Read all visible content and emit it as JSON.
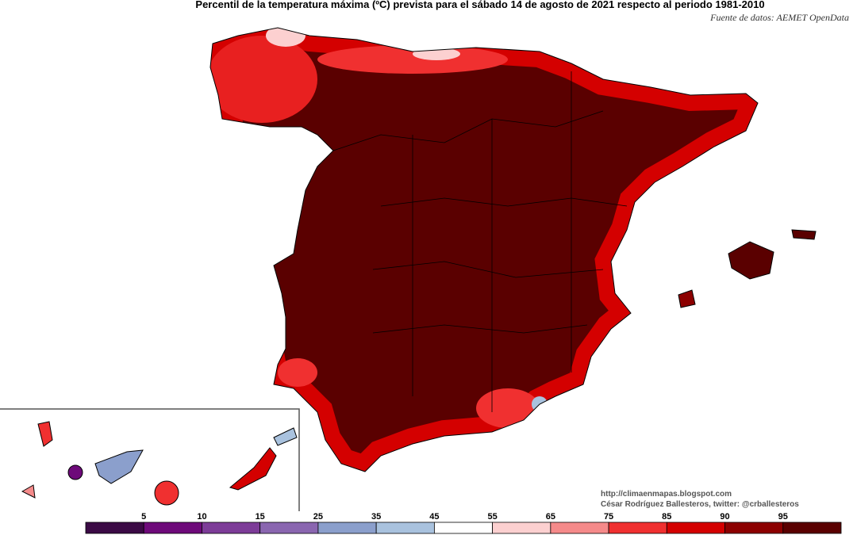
{
  "title": "Percentil de la temperatura máxima (ºC) prevista para el sábado 14 de agosto de 2021 respecto al periodo 1981-2010",
  "source": "Fuente de datos: AEMET OpenData",
  "credits": [
    "http://climaenmapas.blogspot.com",
    "César Rodríguez Ballesteros, twitter: @crballesteros"
  ],
  "legend": {
    "ticks": [
      5,
      10,
      15,
      25,
      35,
      45,
      55,
      65,
      75,
      85,
      90,
      95
    ],
    "colors": [
      "#3b0a45",
      "#6e0a7a",
      "#7d3c98",
      "#8a66b0",
      "#8b9fcc",
      "#a9c2de",
      "#ffffff",
      "#fcd0d0",
      "#f58a8a",
      "#f03030",
      "#d40000",
      "#8c0000",
      "#5a0000"
    ]
  }
}
